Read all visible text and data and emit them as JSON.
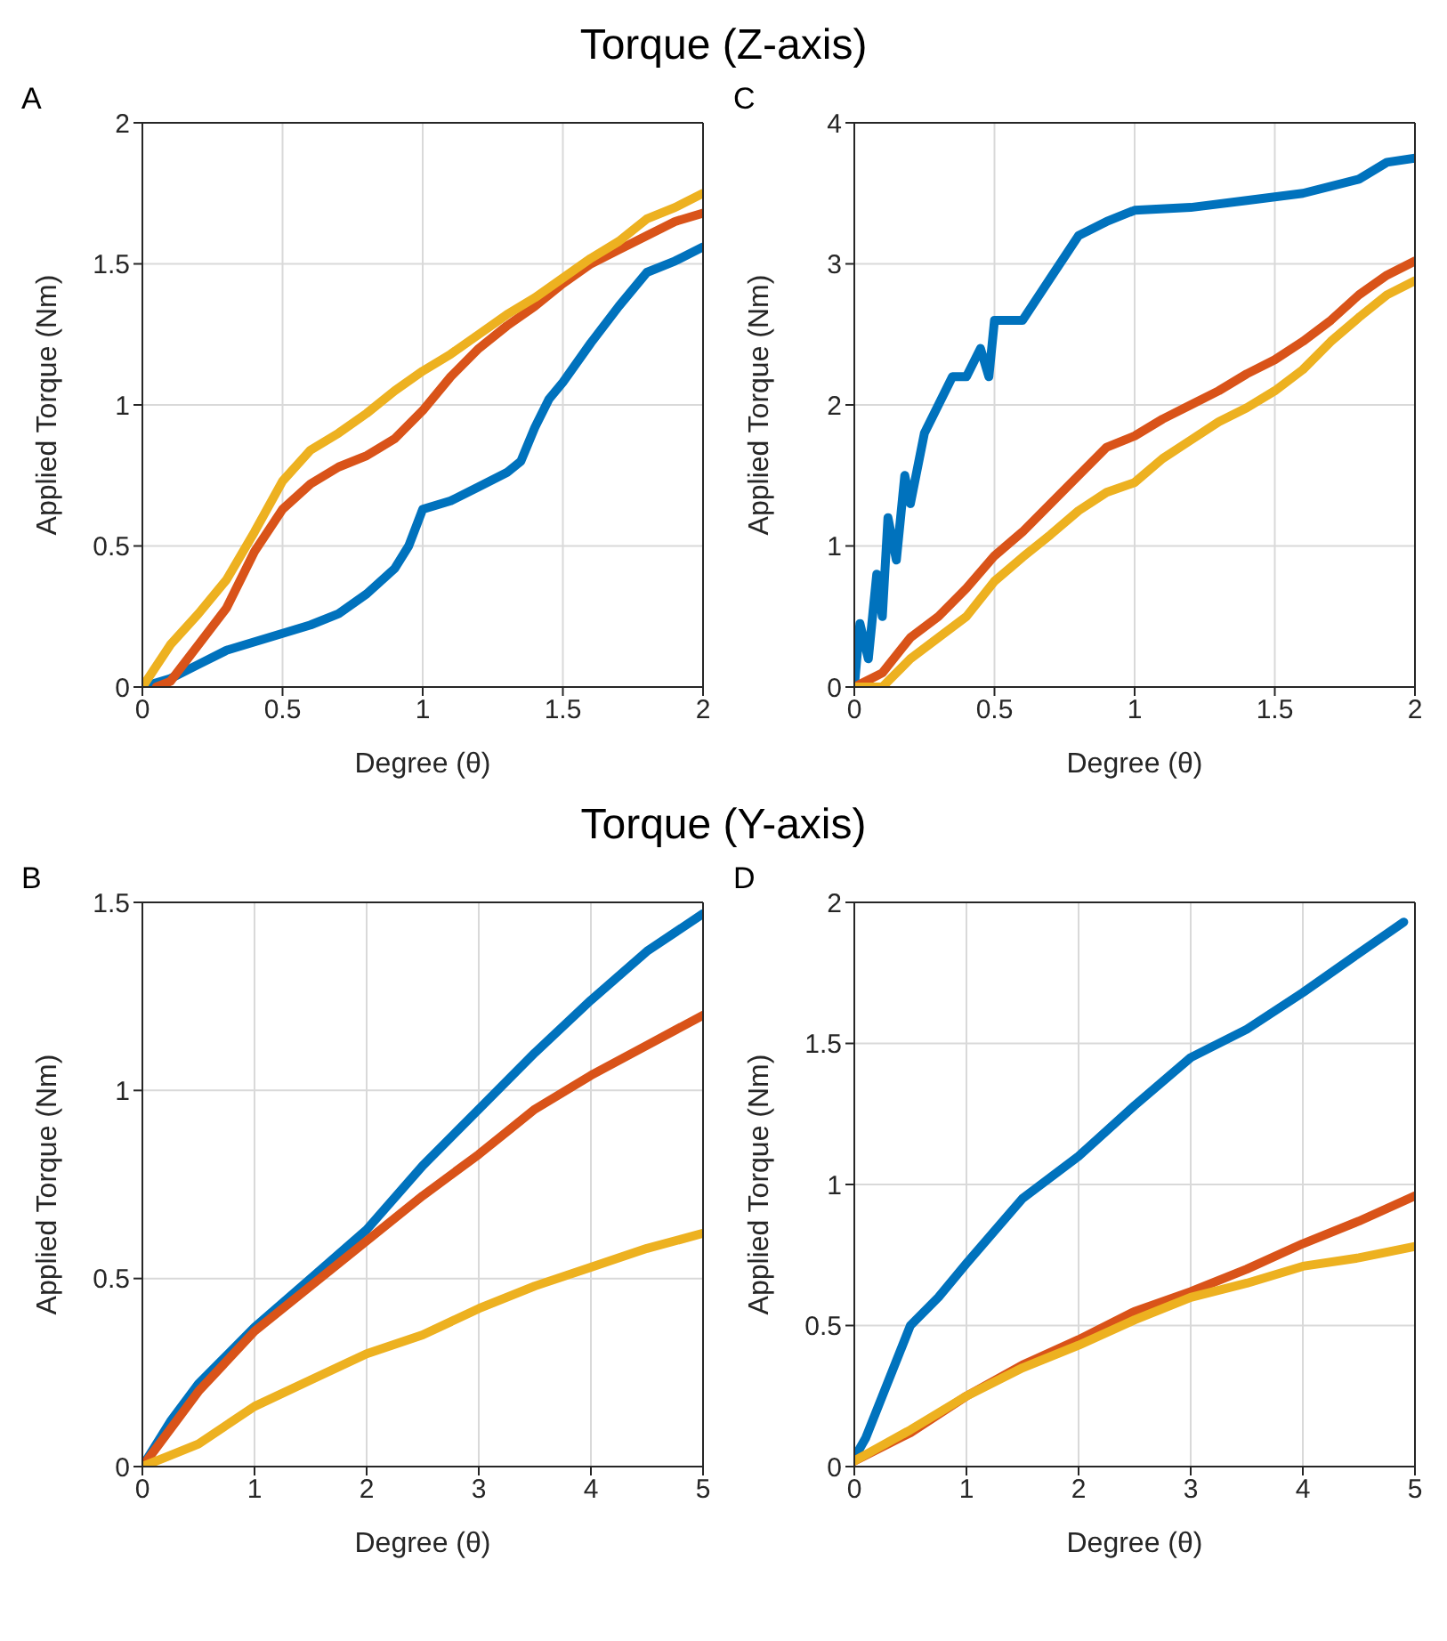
{
  "chart_data": [
    {
      "type": "line",
      "title": "Torque (Z-axis)",
      "annotations": [
        "A"
      ],
      "xlabel": "Degree (θ)",
      "ylabel": "Applied Torque (Nm)",
      "xlim": [
        0,
        2
      ],
      "ylim": [
        0,
        2
      ],
      "xticks": [
        0,
        0.5,
        1,
        1.5,
        2
      ],
      "yticks": [
        0,
        0.5,
        1,
        1.5,
        2
      ],
      "grid": true,
      "marker": "none",
      "line_style": "solid",
      "series": [
        {
          "color": "#0072bd",
          "x": [
            0,
            0.1,
            0.2,
            0.3,
            0.4,
            0.5,
            0.6,
            0.7,
            0.8,
            0.9,
            0.95,
            1.0,
            1.1,
            1.2,
            1.3,
            1.35,
            1.4,
            1.45,
            1.5,
            1.6,
            1.7,
            1.8,
            1.9,
            2.0
          ],
          "values": [
            0,
            0.03,
            0.08,
            0.13,
            0.16,
            0.19,
            0.22,
            0.26,
            0.33,
            0.42,
            0.5,
            0.63,
            0.66,
            0.71,
            0.76,
            0.8,
            0.92,
            1.02,
            1.08,
            1.22,
            1.35,
            1.47,
            1.51,
            1.56
          ]
        },
        {
          "color": "#d95319",
          "x": [
            0.05,
            0.1,
            0.2,
            0.3,
            0.4,
            0.5,
            0.6,
            0.7,
            0.8,
            0.9,
            1.0,
            1.1,
            1.2,
            1.3,
            1.4,
            1.5,
            1.6,
            1.7,
            1.8,
            1.9,
            2.0
          ],
          "values": [
            0,
            0.02,
            0.15,
            0.28,
            0.48,
            0.63,
            0.72,
            0.78,
            0.82,
            0.88,
            0.98,
            1.1,
            1.2,
            1.28,
            1.35,
            1.43,
            1.5,
            1.55,
            1.6,
            1.65,
            1.68
          ]
        },
        {
          "color": "#edb120",
          "x": [
            0,
            0.1,
            0.2,
            0.3,
            0.4,
            0.5,
            0.6,
            0.7,
            0.8,
            0.9,
            1.0,
            1.1,
            1.2,
            1.3,
            1.4,
            1.5,
            1.6,
            1.7,
            1.8,
            1.9,
            2.0
          ],
          "values": [
            0,
            0.15,
            0.26,
            0.38,
            0.55,
            0.73,
            0.84,
            0.9,
            0.97,
            1.05,
            1.12,
            1.18,
            1.25,
            1.32,
            1.38,
            1.45,
            1.52,
            1.58,
            1.66,
            1.7,
            1.75
          ]
        }
      ]
    },
    {
      "type": "line",
      "annotations": [
        "C"
      ],
      "xlabel": "Degree (θ)",
      "ylabel": "Applied Torque (Nm)",
      "xlim": [
        0,
        2
      ],
      "ylim": [
        0,
        4
      ],
      "xticks": [
        0,
        0.5,
        1,
        1.5,
        2
      ],
      "yticks": [
        0,
        1,
        2,
        3,
        4
      ],
      "grid": true,
      "marker": "none",
      "line_style": "solid",
      "series": [
        {
          "color": "#0072bd",
          "x": [
            0,
            0.02,
            0.05,
            0.08,
            0.1,
            0.12,
            0.15,
            0.18,
            0.2,
            0.25,
            0.3,
            0.35,
            0.4,
            0.45,
            0.48,
            0.5,
            0.6,
            0.7,
            0.8,
            0.9,
            1.0,
            1.2,
            1.4,
            1.6,
            1.8,
            1.9,
            2.0
          ],
          "values": [
            0,
            0.45,
            0.2,
            0.8,
            0.5,
            1.2,
            0.9,
            1.5,
            1.3,
            1.8,
            2.0,
            2.2,
            2.2,
            2.4,
            2.2,
            2.6,
            2.6,
            2.9,
            3.2,
            3.3,
            3.38,
            3.4,
            3.45,
            3.5,
            3.6,
            3.72,
            3.75
          ]
        },
        {
          "color": "#d95319",
          "x": [
            0,
            0.1,
            0.2,
            0.3,
            0.4,
            0.5,
            0.6,
            0.7,
            0.8,
            0.9,
            1.0,
            1.1,
            1.2,
            1.3,
            1.4,
            1.5,
            1.6,
            1.7,
            1.8,
            1.9,
            2.0
          ],
          "values": [
            0,
            0.1,
            0.35,
            0.5,
            0.7,
            0.93,
            1.1,
            1.3,
            1.5,
            1.7,
            1.78,
            1.9,
            2.0,
            2.1,
            2.22,
            2.32,
            2.45,
            2.6,
            2.78,
            2.92,
            3.02
          ]
        },
        {
          "color": "#edb120",
          "x": [
            0,
            0.1,
            0.2,
            0.3,
            0.4,
            0.5,
            0.6,
            0.7,
            0.8,
            0.9,
            1.0,
            1.1,
            1.2,
            1.3,
            1.4,
            1.5,
            1.6,
            1.7,
            1.8,
            1.9,
            2.0
          ],
          "values": [
            0,
            0,
            0.2,
            0.35,
            0.5,
            0.75,
            0.92,
            1.08,
            1.25,
            1.38,
            1.45,
            1.62,
            1.75,
            1.88,
            1.98,
            2.1,
            2.25,
            2.45,
            2.62,
            2.78,
            2.88
          ]
        }
      ]
    },
    {
      "type": "line",
      "title": "Torque (Y-axis)",
      "annotations": [
        "B"
      ],
      "xlabel": "Degree (θ)",
      "ylabel": "Applied Torque (Nm)",
      "xlim": [
        0,
        5
      ],
      "ylim": [
        0,
        1.5
      ],
      "xticks": [
        0,
        1,
        2,
        3,
        4,
        5
      ],
      "yticks": [
        0,
        0.5,
        1,
        1.5
      ],
      "grid": true,
      "marker": "none",
      "line_style": "solid",
      "series": [
        {
          "color": "#0072bd",
          "x": [
            0,
            0.25,
            0.5,
            1,
            1.5,
            2,
            2.5,
            3,
            3.5,
            4,
            4.5,
            5
          ],
          "values": [
            0,
            0.12,
            0.22,
            0.37,
            0.5,
            0.63,
            0.8,
            0.95,
            1.1,
            1.24,
            1.37,
            1.47
          ]
        },
        {
          "color": "#d95319",
          "x": [
            0,
            0.25,
            0.5,
            1,
            1.5,
            2,
            2.5,
            3,
            3.5,
            4,
            4.5,
            5
          ],
          "values": [
            0,
            0.1,
            0.2,
            0.36,
            0.48,
            0.6,
            0.72,
            0.83,
            0.95,
            1.04,
            1.12,
            1.2
          ]
        },
        {
          "color": "#edb120",
          "x": [
            0,
            0.25,
            0.5,
            1,
            1.5,
            2,
            2.5,
            3,
            3.5,
            4,
            4.5,
            5
          ],
          "values": [
            0,
            0.03,
            0.06,
            0.16,
            0.23,
            0.3,
            0.35,
            0.42,
            0.48,
            0.53,
            0.58,
            0.62
          ]
        }
      ]
    },
    {
      "type": "line",
      "annotations": [
        "D"
      ],
      "xlabel": "Degree (θ)",
      "ylabel": "Applied Torque (Nm)",
      "xlim": [
        0,
        5
      ],
      "ylim": [
        0,
        2
      ],
      "xticks": [
        0,
        1,
        2,
        3,
        4,
        5
      ],
      "yticks": [
        0,
        0.5,
        1,
        1.5,
        2
      ],
      "grid": true,
      "marker": "none",
      "line_style": "solid",
      "series": [
        {
          "color": "#0072bd",
          "x": [
            0,
            0.1,
            0.25,
            0.5,
            0.75,
            1,
            1.5,
            2,
            2.5,
            3,
            3.5,
            4,
            4.5,
            4.9
          ],
          "values": [
            0.03,
            0.1,
            0.25,
            0.5,
            0.6,
            0.72,
            0.95,
            1.1,
            1.28,
            1.45,
            1.55,
            1.68,
            1.82,
            1.93
          ]
        },
        {
          "color": "#d95319",
          "x": [
            0,
            0.5,
            1,
            1.5,
            2,
            2.5,
            3,
            3.5,
            4,
            4.5,
            5
          ],
          "values": [
            0.02,
            0.12,
            0.25,
            0.36,
            0.45,
            0.55,
            0.62,
            0.7,
            0.79,
            0.87,
            0.96
          ]
        },
        {
          "color": "#edb120",
          "x": [
            0,
            0.5,
            1,
            1.5,
            2,
            2.5,
            3,
            3.5,
            4,
            4.5,
            5
          ],
          "values": [
            0.02,
            0.13,
            0.25,
            0.35,
            0.43,
            0.52,
            0.6,
            0.65,
            0.71,
            0.74,
            0.78
          ]
        }
      ]
    }
  ]
}
